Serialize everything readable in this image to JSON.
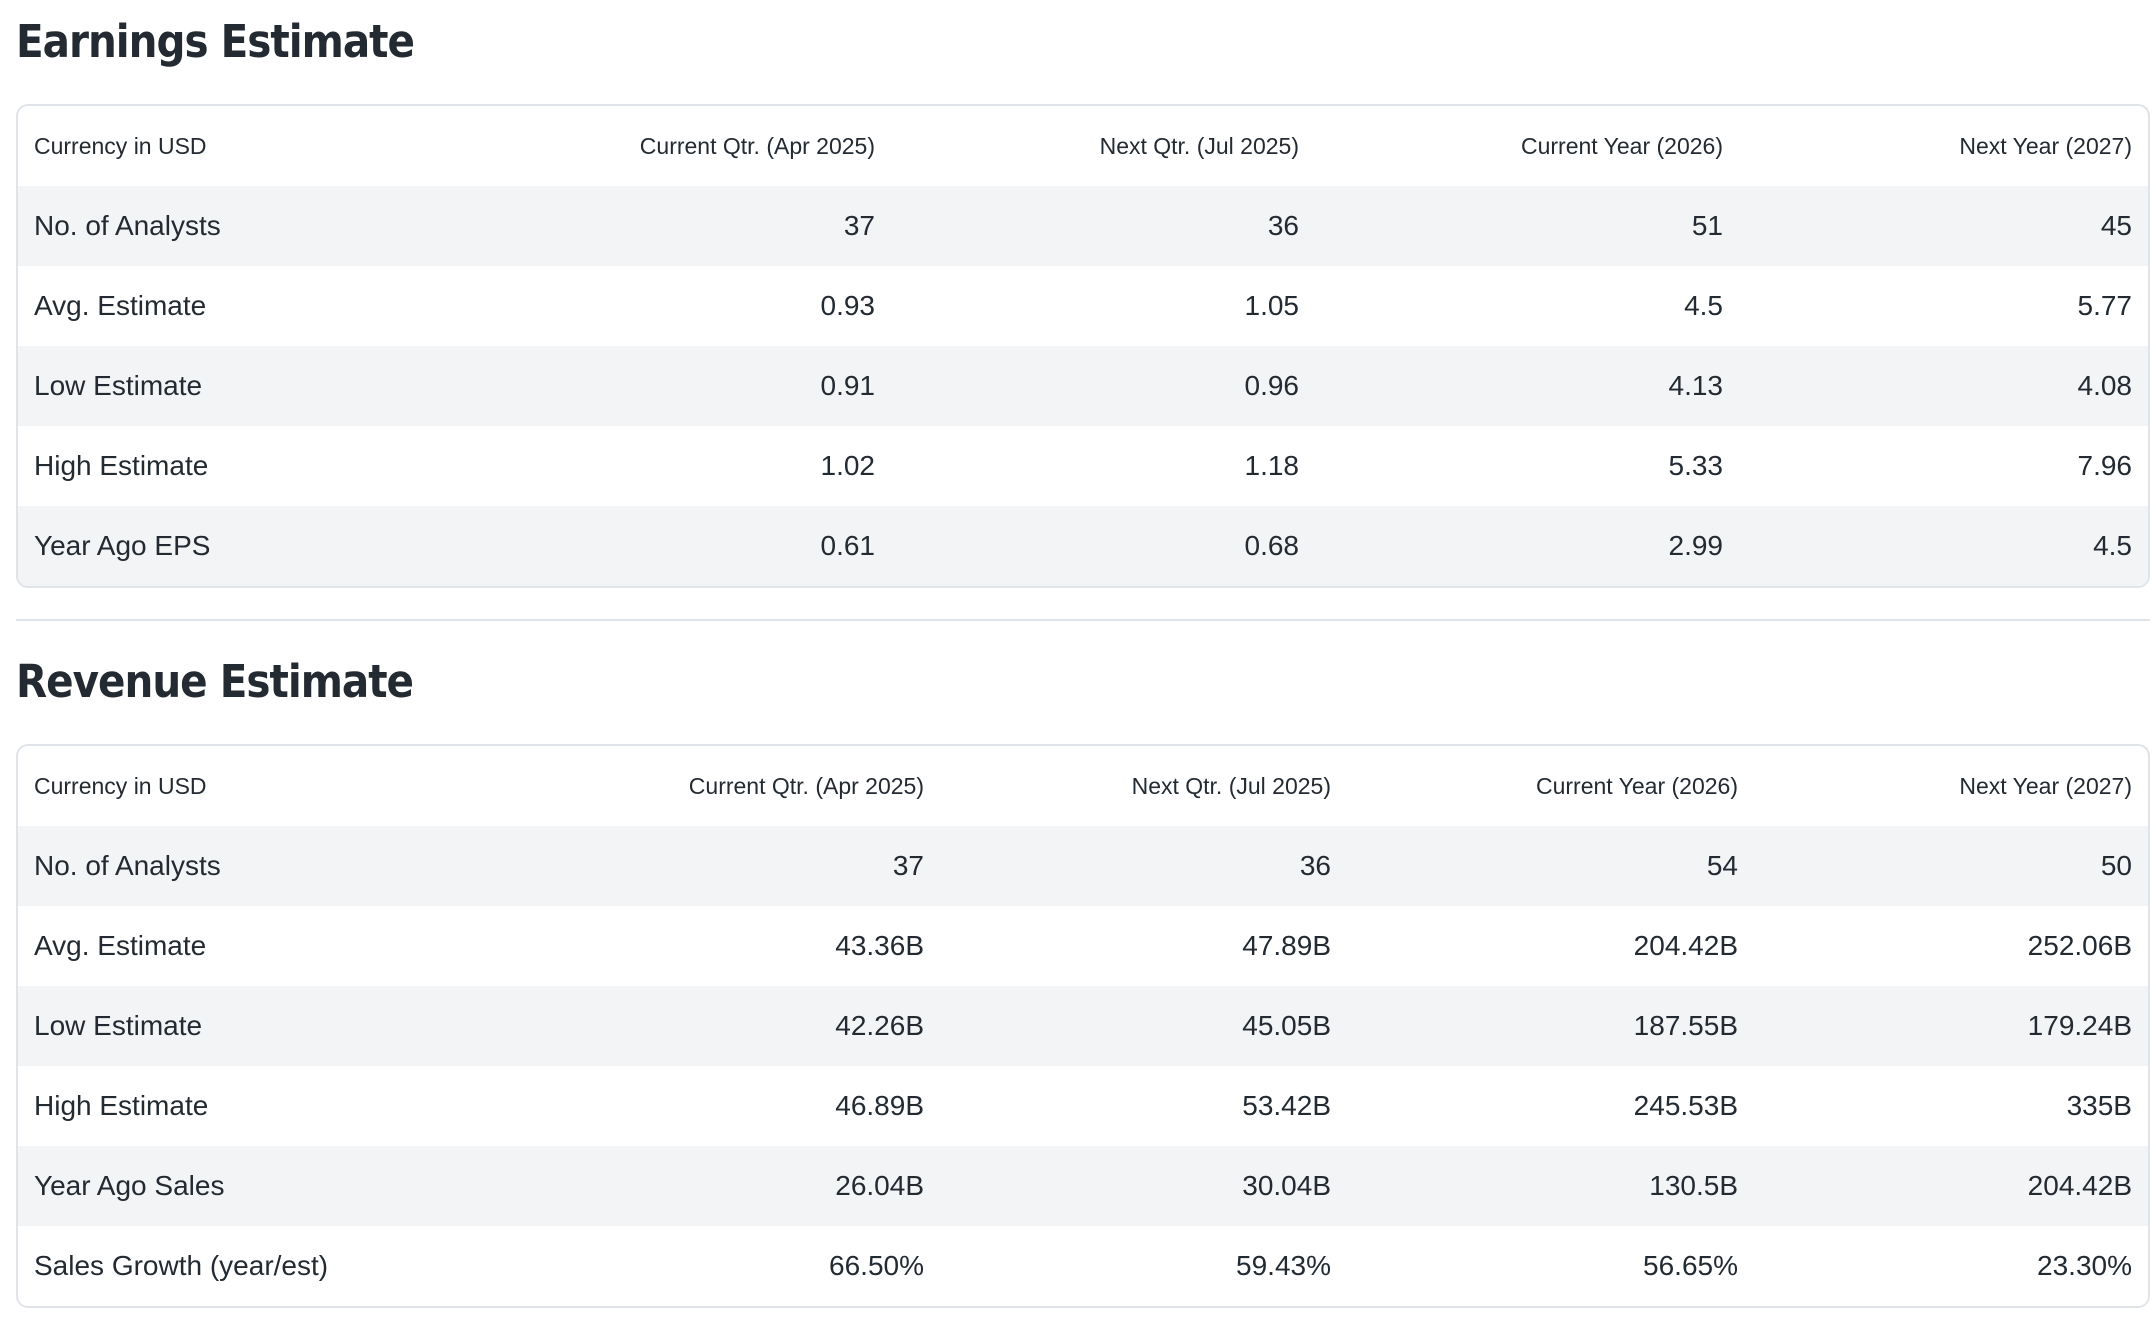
{
  "earnings": {
    "title": "Earnings Estimate",
    "headers": [
      "Currency in USD",
      "Current Qtr. (Apr 2025)",
      "Next Qtr. (Jul 2025)",
      "Current Year (2026)",
      "Next Year (2027)"
    ],
    "rows": [
      [
        "No. of Analysts",
        "37",
        "36",
        "51",
        "45"
      ],
      [
        "Avg. Estimate",
        "0.93",
        "1.05",
        "4.5",
        "5.77"
      ],
      [
        "Low Estimate",
        "0.91",
        "0.96",
        "4.13",
        "4.08"
      ],
      [
        "High Estimate",
        "1.02",
        "1.18",
        "5.33",
        "7.96"
      ],
      [
        "Year Ago EPS",
        "0.61",
        "0.68",
        "2.99",
        "4.5"
      ]
    ]
  },
  "revenue": {
    "title": "Revenue Estimate",
    "headers": [
      "Currency in USD",
      "Current Qtr. (Apr 2025)",
      "Next Qtr. (Jul 2025)",
      "Current Year (2026)",
      "Next Year (2027)"
    ],
    "rows": [
      [
        "No. of Analysts",
        "37",
        "36",
        "54",
        "50"
      ],
      [
        "Avg. Estimate",
        "43.36B",
        "47.89B",
        "204.42B",
        "252.06B"
      ],
      [
        "Low Estimate",
        "42.26B",
        "45.05B",
        "187.55B",
        "179.24B"
      ],
      [
        "High Estimate",
        "46.89B",
        "53.42B",
        "245.53B",
        "335B"
      ],
      [
        "Year Ago Sales",
        "26.04B",
        "30.04B",
        "130.5B",
        "204.42B"
      ],
      [
        "Sales Growth (year/est)",
        "66.50%",
        "59.43%",
        "56.65%",
        "23.30%"
      ]
    ]
  }
}
